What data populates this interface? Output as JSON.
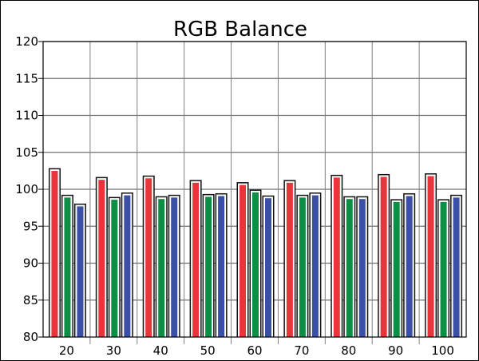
{
  "chart_data": {
    "type": "bar",
    "title": "RGB Balance",
    "xlabel": "",
    "ylabel": "",
    "categories": [
      "20",
      "30",
      "40",
      "50",
      "60",
      "70",
      "80",
      "90",
      "100"
    ],
    "series": [
      {
        "color": "#e8343a",
        "values": [
          102.7,
          101.5,
          101.7,
          101.1,
          100.8,
          101.1,
          101.8,
          101.9,
          102.0
        ]
      },
      {
        "color": "#0b8f45",
        "values": [
          99.1,
          98.8,
          98.9,
          99.2,
          99.8,
          99.1,
          98.9,
          98.5,
          98.5
        ]
      },
      {
        "color": "#3a4fa5",
        "values": [
          97.9,
          99.4,
          99.1,
          99.3,
          99.0,
          99.4,
          98.9,
          99.3,
          99.1
        ]
      }
    ],
    "ylim": [
      80,
      120
    ],
    "yticks": [
      80,
      85,
      90,
      95,
      100,
      105,
      110,
      115,
      120
    ],
    "grid": true,
    "legend": "none"
  }
}
